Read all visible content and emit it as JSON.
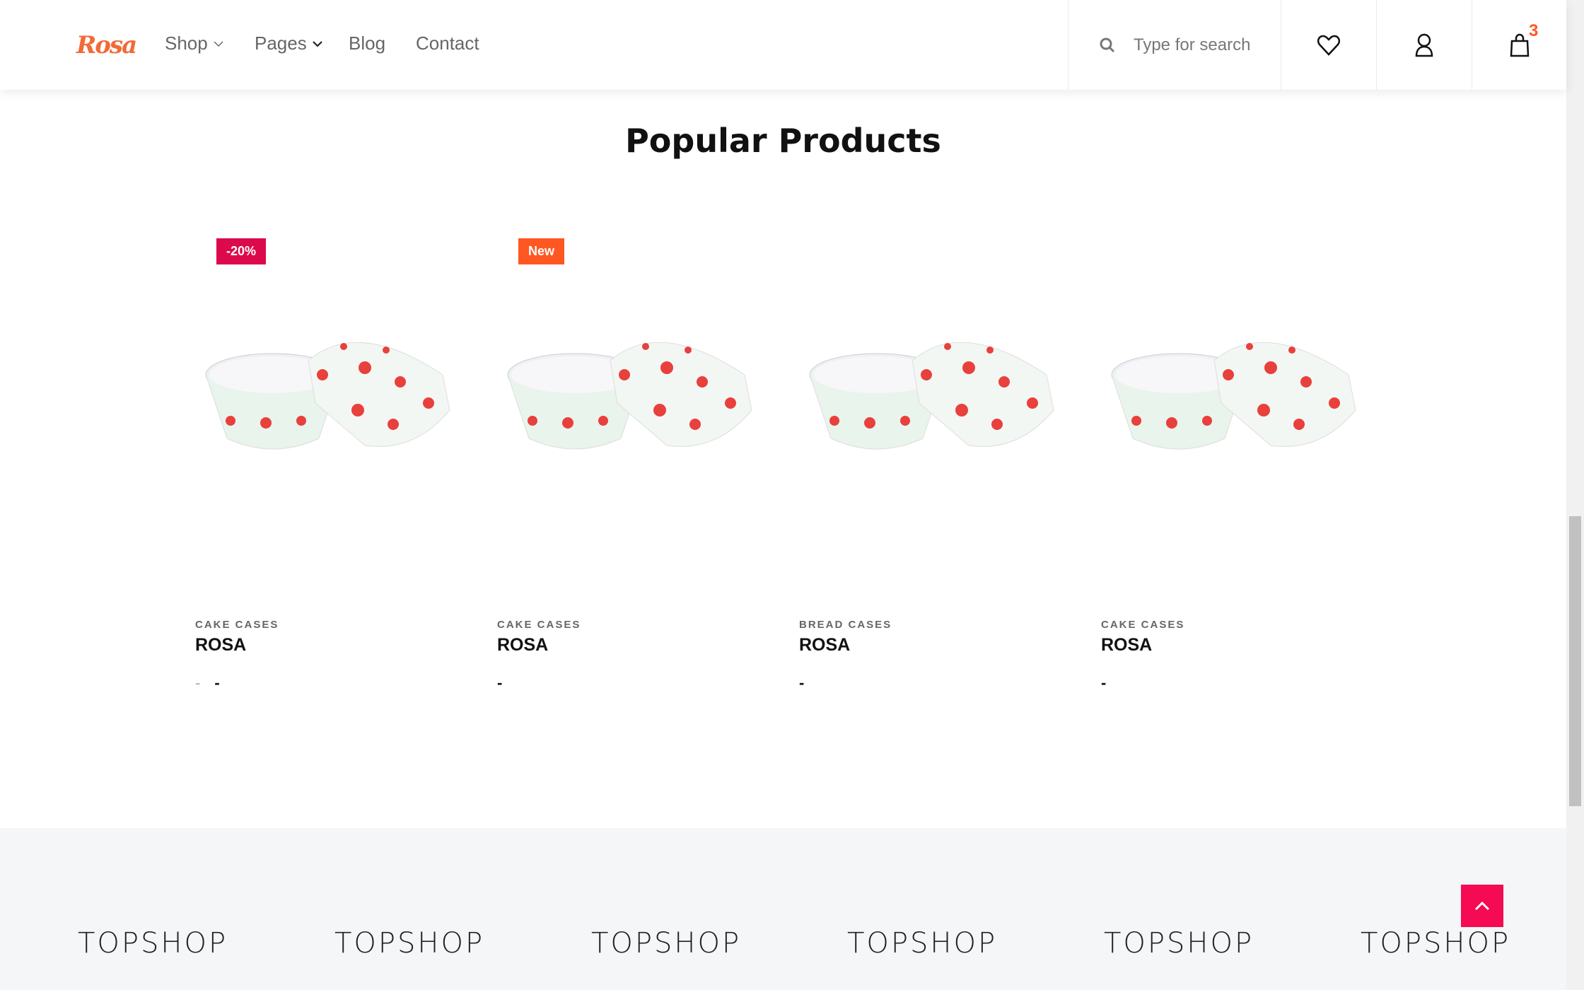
{
  "header": {
    "logo": "Rosa",
    "nav": [
      {
        "label": "Shop"
      },
      {
        "label": "Pages"
      },
      {
        "label": "Blog"
      },
      {
        "label": "Contact"
      }
    ],
    "search_placeholder": "Type for search",
    "cart_count": "3"
  },
  "section": {
    "title": "Popular Products"
  },
  "products": [
    {
      "badge": "-20%",
      "badge_color": "#dc0a4c",
      "category": "CAKE CASES",
      "name": "ROSA",
      "price": "-"
    },
    {
      "badge": "New",
      "badge_color": "#ff5722",
      "category": "CAKE CASES",
      "name": "ROSA",
      "price": "-"
    },
    {
      "badge": "",
      "category": "BREAD CASES",
      "name": "ROSA",
      "price": "-"
    },
    {
      "badge": "",
      "category": "CAKE CASES",
      "name": "ROSA",
      "price": "-"
    }
  ],
  "footer": {
    "brands": [
      "TOPSHOP",
      "TOPSHOP",
      "TOPSHOP",
      "TOPSHOP",
      "TOPSHOP",
      "TOPSHOP"
    ]
  },
  "colors": {
    "accent": "#f50a54",
    "brand": "#f26a36"
  }
}
